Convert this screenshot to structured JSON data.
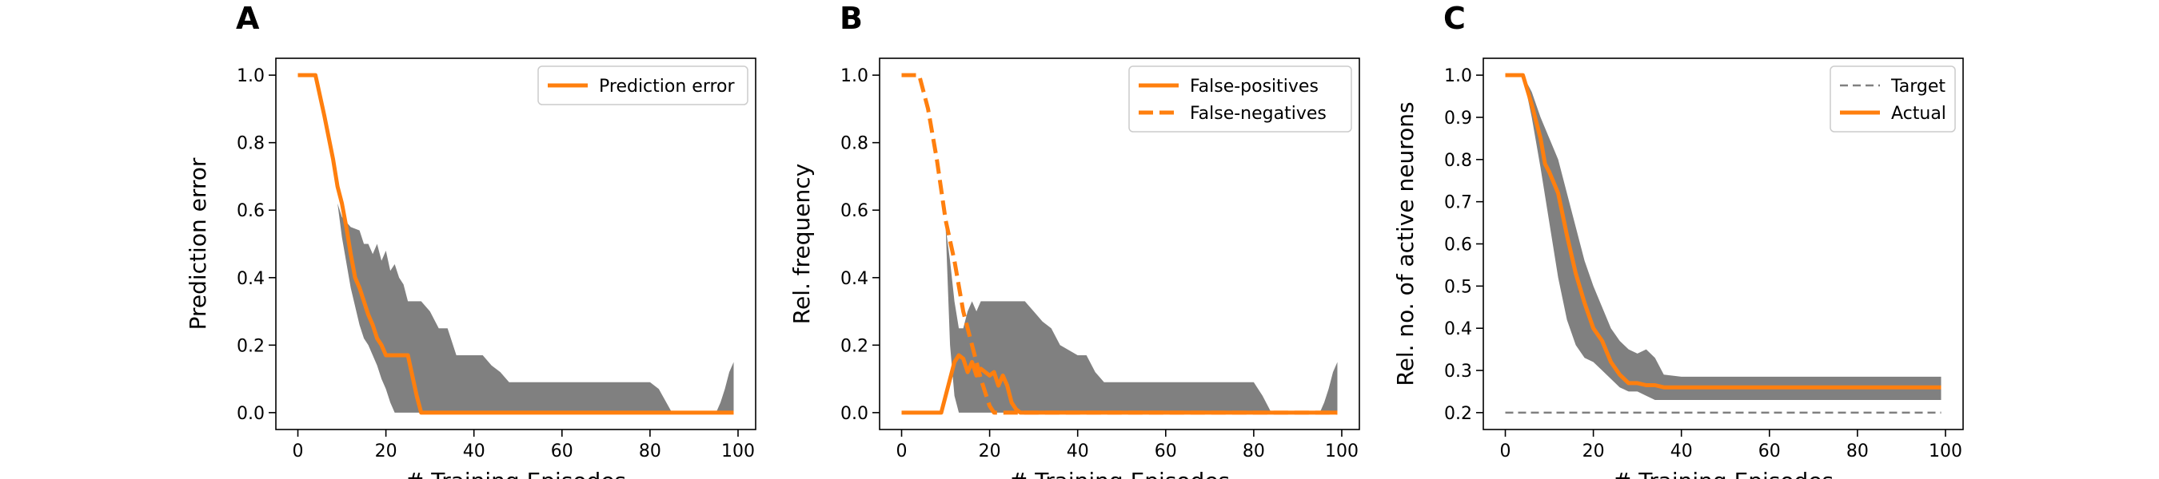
{
  "chart_data": [
    {
      "panel": "A",
      "type": "line",
      "xlabel": "# Training Episodes",
      "ylabel": "Prediction error",
      "xlim": [
        -5,
        104
      ],
      "ylim": [
        -0.05,
        1.05
      ],
      "xticks": [
        0,
        20,
        40,
        60,
        80,
        100
      ],
      "xtick_labels": [
        "0",
        "20",
        "40",
        "60",
        "80",
        "100"
      ],
      "yticks": [
        0.0,
        0.2,
        0.4,
        0.6,
        0.8,
        1.0
      ],
      "ytick_labels": [
        "0.0",
        "0.2",
        "0.4",
        "0.6",
        "0.8",
        "1.0"
      ],
      "grid": false,
      "legend_position": "top-right",
      "band": {
        "color": "#808080",
        "x": [
          0,
          4,
          9,
          10,
          12,
          14,
          15,
          16,
          17,
          18,
          19,
          20,
          21,
          22,
          23,
          24,
          25,
          26,
          28,
          30,
          32,
          34,
          36,
          38,
          40,
          42,
          44,
          46,
          48,
          50,
          55,
          60,
          65,
          70,
          75,
          80,
          82,
          85,
          90,
          95,
          96,
          97,
          98,
          99
        ],
        "upper": [
          1.0,
          1.0,
          0.62,
          0.58,
          0.55,
          0.54,
          0.5,
          0.5,
          0.47,
          0.5,
          0.45,
          0.48,
          0.42,
          0.44,
          0.4,
          0.38,
          0.33,
          0.33,
          0.33,
          0.3,
          0.25,
          0.25,
          0.17,
          0.17,
          0.17,
          0.17,
          0.14,
          0.12,
          0.09,
          0.09,
          0.09,
          0.09,
          0.09,
          0.09,
          0.09,
          0.09,
          0.07,
          0.0,
          0.0,
          0.0,
          0.03,
          0.07,
          0.12,
          0.15
        ],
        "lower": [
          1.0,
          1.0,
          0.62,
          0.52,
          0.37,
          0.26,
          0.22,
          0.2,
          0.17,
          0.14,
          0.1,
          0.07,
          0.03,
          0.0,
          0.0,
          0.0,
          0.0,
          0.0,
          0.0,
          0.0,
          0.0,
          0.0,
          0.0,
          0.0,
          0.0,
          0.0,
          0.0,
          0.0,
          0.0,
          0.0,
          0.0,
          0.0,
          0.0,
          0.0,
          0.0,
          0.0,
          0.0,
          0.0,
          0.0,
          0.0,
          0.0,
          0.0,
          0.0,
          0.0
        ]
      },
      "series": [
        {
          "name": "Prediction error",
          "color": "#ff7f0e",
          "style": "solid",
          "x": [
            0,
            4,
            6,
            8,
            9,
            10,
            11,
            12,
            13,
            14,
            15,
            16,
            17,
            18,
            19,
            20,
            24,
            25,
            26,
            27,
            28,
            40,
            60,
            80,
            99
          ],
          "y": [
            1.0,
            1.0,
            0.88,
            0.75,
            0.67,
            0.62,
            0.55,
            0.47,
            0.4,
            0.37,
            0.33,
            0.29,
            0.26,
            0.22,
            0.2,
            0.17,
            0.17,
            0.17,
            0.11,
            0.05,
            0.0,
            0.0,
            0.0,
            0.0,
            0.0
          ]
        }
      ]
    },
    {
      "panel": "B",
      "type": "line",
      "xlabel": "# Training Episodes",
      "ylabel": "Rel. frequency",
      "xlim": [
        -5,
        104
      ],
      "ylim": [
        -0.05,
        1.05
      ],
      "xticks": [
        0,
        20,
        40,
        60,
        80,
        100
      ],
      "xtick_labels": [
        "0",
        "20",
        "40",
        "60",
        "80",
        "100"
      ],
      "yticks": [
        0.0,
        0.2,
        0.4,
        0.6,
        0.8,
        1.0
      ],
      "ytick_labels": [
        "0.0",
        "0.2",
        "0.4",
        "0.6",
        "0.8",
        "1.0"
      ],
      "grid": false,
      "legend_position": "top-right",
      "band": {
        "color": "#808080",
        "x": [
          0,
          9,
          10,
          11,
          12,
          13,
          14,
          15,
          16,
          17,
          18,
          19,
          20,
          24,
          26,
          28,
          30,
          32,
          34,
          36,
          40,
          42,
          44,
          46,
          48,
          60,
          70,
          80,
          82,
          84,
          95,
          96,
          97,
          98,
          99
        ],
        "upper": [
          0.0,
          0.0,
          0.55,
          0.45,
          0.33,
          0.25,
          0.25,
          0.3,
          0.33,
          0.3,
          0.33,
          0.33,
          0.33,
          0.33,
          0.33,
          0.33,
          0.3,
          0.27,
          0.25,
          0.2,
          0.17,
          0.17,
          0.12,
          0.09,
          0.09,
          0.09,
          0.09,
          0.09,
          0.05,
          0.0,
          0.0,
          0.03,
          0.07,
          0.12,
          0.15
        ],
        "lower": [
          0.0,
          0.0,
          0.55,
          0.2,
          0.05,
          0.0,
          0.0,
          0.0,
          0.0,
          0.0,
          0.0,
          0.0,
          0.0,
          0.0,
          0.0,
          0.0,
          0.0,
          0.0,
          0.0,
          0.0,
          0.0,
          0.0,
          0.0,
          0.0,
          0.0,
          0.0,
          0.0,
          0.0,
          0.0,
          0.0,
          0.0,
          0.0,
          0.0,
          0.0,
          0.0
        ]
      },
      "series": [
        {
          "name": "False-positives",
          "color": "#ff7f0e",
          "style": "solid",
          "x": [
            0,
            9,
            10,
            11,
            12,
            13,
            14,
            15,
            16,
            17,
            18,
            19,
            20,
            21,
            22,
            23,
            24,
            25,
            26,
            27,
            40,
            60,
            80,
            99
          ],
          "y": [
            0.0,
            0.0,
            0.05,
            0.1,
            0.15,
            0.17,
            0.16,
            0.12,
            0.15,
            0.11,
            0.13,
            0.12,
            0.11,
            0.12,
            0.08,
            0.11,
            0.08,
            0.03,
            0.01,
            0.0,
            0.0,
            0.0,
            0.0,
            0.0
          ]
        },
        {
          "name": "False-negatives",
          "color": "#ff7f0e",
          "style": "dashed",
          "x": [
            0,
            4,
            6,
            8,
            10,
            12,
            14,
            16,
            18,
            20,
            21,
            22,
            99
          ],
          "y": [
            1.0,
            1.0,
            0.9,
            0.75,
            0.57,
            0.45,
            0.3,
            0.2,
            0.1,
            0.02,
            0.0,
            0.0,
            0.0
          ]
        }
      ]
    },
    {
      "panel": "C",
      "type": "line",
      "xlabel": "# Training Episodes",
      "ylabel": "Rel. no. of active neurons",
      "xlim": [
        -5,
        104
      ],
      "ylim": [
        0.16,
        1.04
      ],
      "xticks": [
        0,
        20,
        40,
        60,
        80,
        100
      ],
      "xtick_labels": [
        "0",
        "20",
        "40",
        "60",
        "80",
        "100"
      ],
      "yticks": [
        0.2,
        0.3,
        0.4,
        0.5,
        0.6,
        0.7,
        0.8,
        0.9,
        1.0
      ],
      "ytick_labels": [
        "0.2",
        "0.3",
        "0.4",
        "0.5",
        "0.6",
        "0.7",
        "0.8",
        "0.9",
        "1.0"
      ],
      "grid": false,
      "legend_position": "top-right",
      "band": {
        "color": "#808080",
        "x": [
          0,
          4,
          6,
          8,
          10,
          12,
          14,
          16,
          18,
          20,
          22,
          24,
          26,
          28,
          30,
          32,
          34,
          36,
          40,
          60,
          80,
          99
        ],
        "upper": [
          1.0,
          1.0,
          0.96,
          0.9,
          0.85,
          0.8,
          0.72,
          0.64,
          0.56,
          0.5,
          0.45,
          0.4,
          0.37,
          0.35,
          0.34,
          0.35,
          0.33,
          0.29,
          0.285,
          0.285,
          0.285,
          0.285
        ],
        "lower": [
          1.0,
          1.0,
          0.9,
          0.78,
          0.65,
          0.52,
          0.42,
          0.36,
          0.33,
          0.32,
          0.3,
          0.28,
          0.26,
          0.25,
          0.25,
          0.24,
          0.23,
          0.23,
          0.23,
          0.23,
          0.23,
          0.23
        ]
      },
      "series": [
        {
          "name": "Target",
          "color": "#808080",
          "style": "dashed",
          "x": [
            0,
            99
          ],
          "y": [
            0.2,
            0.2
          ]
        },
        {
          "name": "Actual",
          "color": "#ff7f0e",
          "style": "solid",
          "x": [
            0,
            4,
            6,
            8,
            9,
            10,
            12,
            14,
            16,
            18,
            20,
            22,
            24,
            26,
            28,
            30,
            32,
            34,
            36,
            40,
            60,
            80,
            99
          ],
          "y": [
            1.0,
            1.0,
            0.93,
            0.85,
            0.79,
            0.77,
            0.72,
            0.62,
            0.53,
            0.46,
            0.4,
            0.37,
            0.32,
            0.29,
            0.27,
            0.27,
            0.265,
            0.265,
            0.26,
            0.26,
            0.26,
            0.26,
            0.26
          ]
        }
      ]
    }
  ]
}
